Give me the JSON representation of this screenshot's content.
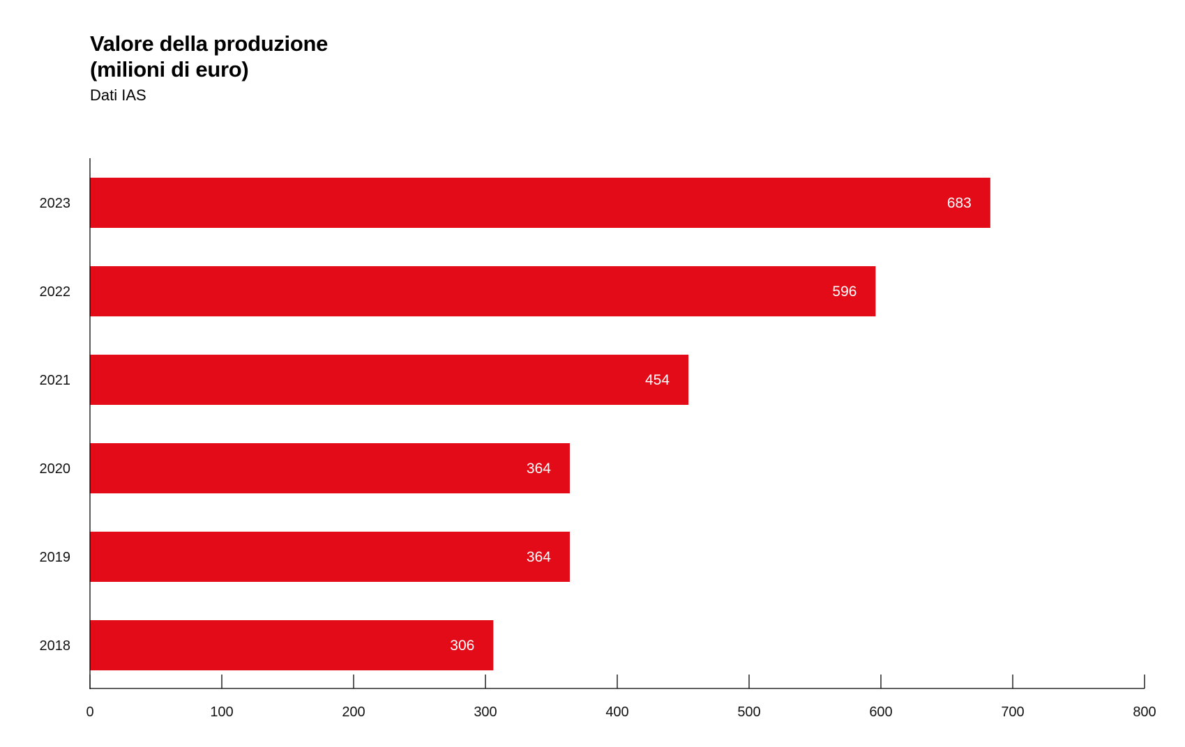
{
  "chart_data": {
    "type": "bar",
    "orientation": "horizontal",
    "title": "Valore della produzione\n(milioni di euro)",
    "title_lines": [
      "Valore della produzione",
      "(milioni di euro)"
    ],
    "subtitle": "Dati IAS",
    "categories": [
      "2023",
      "2022",
      "2021",
      "2020",
      "2019",
      "2018"
    ],
    "values": [
      683,
      596,
      454,
      364,
      364,
      306
    ],
    "data_labels": [
      "683",
      "596",
      "454",
      "364",
      "364",
      "306"
    ],
    "xlim": [
      0,
      800
    ],
    "x_ticks": [
      0,
      100,
      200,
      300,
      400,
      500,
      600,
      700,
      800
    ],
    "x_tick_labels": [
      "0",
      "100",
      "200",
      "300",
      "400",
      "500",
      "600",
      "700",
      "800"
    ],
    "grid": false,
    "legend": "none",
    "bar_color": "#e30b17",
    "label_color": "#ffffff",
    "axis_color": "#000000"
  }
}
